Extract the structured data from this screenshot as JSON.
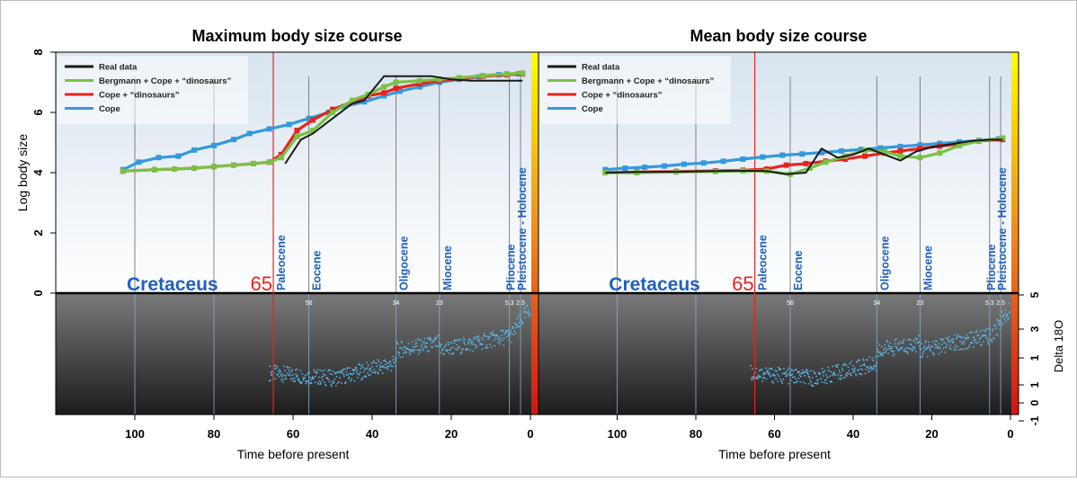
{
  "colors": {
    "real": "#1a1a1a",
    "bergmann": "#7ac143",
    "cope_dino": "#e8231f",
    "cope": "#3399dd",
    "era_label": "#1f5fbf",
    "k_pg": "#e8231f",
    "delta_points": "#5bb8e8"
  },
  "common": {
    "xlabel": "Time before present",
    "ylabel": "Log body size",
    "ylabel_right": "Delta 18O",
    "x_ticks": [
      "100",
      "80",
      "60",
      "40",
      "20",
      "0"
    ],
    "y_ticks": [
      "0",
      "2",
      "4",
      "6",
      "8"
    ],
    "right_ticks": [
      "5",
      "3",
      "1",
      "1",
      "0",
      "-1"
    ],
    "legend": [
      "Real data",
      "Bergmann + Cope + “dinosaurs”",
      "Cope + “dinosaurs”",
      "Cope"
    ],
    "k_pg_label": "65",
    "cretaceus_label": "Cretaceus",
    "epochs": [
      {
        "name": "Paleocene",
        "start": 65
      },
      {
        "name": "Eocene",
        "start": 56
      },
      {
        "name": "Oligocene",
        "start": 34
      },
      {
        "name": "Miocene",
        "start": 23
      },
      {
        "name": "Pliocene",
        "start": 5.3
      },
      {
        "name": "Pleistocene - Holocene",
        "start": 2.5
      }
    ],
    "boundary_labels": [
      "56",
      "34",
      "23",
      "5.3",
      "2.5"
    ]
  },
  "chart_data": [
    {
      "type": "line",
      "title": "Maximum body size course",
      "xlabel": "Time before present",
      "ylabel": "Log body size",
      "xlim": [
        120,
        0
      ],
      "ylim": [
        0,
        8
      ],
      "gridlines_x": [
        100,
        80,
        56,
        34,
        23,
        5.3,
        2.5
      ],
      "series": [
        {
          "name": "Real data",
          "x": [
            62,
            58,
            55,
            50,
            45,
            42,
            37,
            35,
            30,
            25,
            20,
            15,
            10,
            5,
            2
          ],
          "y": [
            4.3,
            5.1,
            5.3,
            5.8,
            6.3,
            6.4,
            7.2,
            7.2,
            7.2,
            7.2,
            7.1,
            7.05,
            7.05,
            7.05,
            7.05
          ]
        },
        {
          "name": "Bergmann + Cope + “dinosaurs”",
          "x": [
            103,
            95,
            90,
            85,
            80,
            75,
            70,
            66,
            63,
            59,
            55,
            50,
            45,
            41,
            37,
            34,
            28,
            23,
            18,
            12,
            6,
            2
          ],
          "y": [
            4.05,
            4.1,
            4.12,
            4.15,
            4.2,
            4.25,
            4.3,
            4.35,
            4.5,
            5.2,
            5.4,
            6.0,
            6.4,
            6.6,
            6.85,
            7.0,
            7.05,
            7.1,
            7.15,
            7.22,
            7.28,
            7.3
          ]
        },
        {
          "name": "Cope + “dinosaurs”",
          "x": [
            103,
            95,
            90,
            85,
            80,
            75,
            70,
            66,
            63,
            59,
            55,
            50,
            45,
            41,
            37,
            34,
            28,
            23,
            18,
            12,
            6,
            2
          ],
          "y": [
            4.05,
            4.1,
            4.12,
            4.15,
            4.2,
            4.25,
            4.3,
            4.35,
            4.6,
            5.4,
            5.75,
            6.1,
            6.35,
            6.55,
            6.65,
            6.8,
            6.95,
            7.05,
            7.12,
            7.2,
            7.25,
            7.28
          ]
        },
        {
          "name": "Cope",
          "x": [
            103,
            99,
            94,
            89,
            85,
            80,
            75,
            71,
            66,
            61,
            56,
            51,
            47,
            42,
            37,
            33,
            28,
            23,
            18,
            13,
            8,
            3
          ],
          "y": [
            4.1,
            4.35,
            4.5,
            4.55,
            4.75,
            4.9,
            5.1,
            5.3,
            5.45,
            5.6,
            5.8,
            6.0,
            6.2,
            6.35,
            6.55,
            6.7,
            6.85,
            7.0,
            7.1,
            7.18,
            7.25,
            7.28
          ]
        }
      ]
    },
    {
      "type": "line",
      "title": "Mean body size course",
      "xlabel": "Time before present",
      "ylabel": "Log body size",
      "xlim": [
        120,
        0
      ],
      "ylim": [
        0,
        8
      ],
      "gridlines_x": [
        100,
        80,
        56,
        34,
        23,
        5.3,
        2.5
      ],
      "series": [
        {
          "name": "Real data",
          "x": [
            103,
            95,
            85,
            75,
            68,
            62,
            57,
            52,
            48,
            44,
            40,
            36,
            33,
            28,
            24,
            20,
            15,
            10,
            5,
            2
          ],
          "y": [
            4.0,
            4.02,
            4.03,
            4.05,
            4.06,
            4.05,
            3.95,
            4.0,
            4.8,
            4.5,
            4.6,
            4.8,
            4.65,
            4.4,
            4.7,
            4.85,
            4.95,
            5.05,
            5.1,
            5.1
          ]
        },
        {
          "name": "Bergmann + Cope + “dinosaurs”",
          "x": [
            103,
            95,
            85,
            75,
            68,
            62,
            56,
            51,
            47,
            42,
            37,
            32,
            28,
            23,
            18,
            13,
            8,
            2
          ],
          "y": [
            4.0,
            4.0,
            4.02,
            4.04,
            4.06,
            4.05,
            3.95,
            4.15,
            4.35,
            4.55,
            4.75,
            4.7,
            4.55,
            4.5,
            4.65,
            4.9,
            5.05,
            5.15
          ]
        },
        {
          "name": "Cope + “dinosaurs”",
          "x": [
            103,
            95,
            85,
            75,
            68,
            62,
            57,
            52,
            47,
            42,
            37,
            32,
            28,
            23,
            18,
            13,
            8,
            2
          ],
          "y": [
            4.0,
            4.02,
            4.04,
            4.06,
            4.08,
            4.12,
            4.25,
            4.3,
            4.38,
            4.45,
            4.55,
            4.65,
            4.72,
            4.8,
            4.88,
            4.95,
            5.05,
            5.1
          ]
        },
        {
          "name": "Cope",
          "x": [
            103,
            98,
            93,
            88,
            83,
            78,
            73,
            68,
            63,
            58,
            53,
            48,
            43,
            38,
            33,
            28,
            23,
            18,
            13,
            8,
            3
          ],
          "y": [
            4.1,
            4.15,
            4.18,
            4.22,
            4.28,
            4.32,
            4.38,
            4.45,
            4.52,
            4.58,
            4.62,
            4.67,
            4.72,
            4.77,
            4.82,
            4.87,
            4.92,
            4.97,
            5.02,
            5.07,
            5.12
          ]
        }
      ]
    }
  ]
}
